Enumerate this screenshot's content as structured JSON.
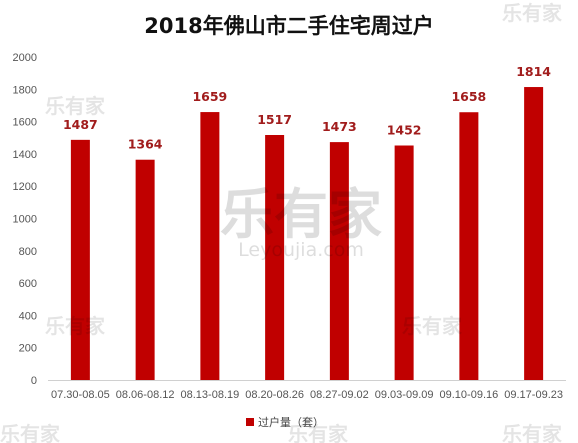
{
  "chart_data": {
    "type": "bar",
    "title": "2018年佛山市二手住宅周过户",
    "categories": [
      "07.30-08.05",
      "08.06-08.12",
      "08.13-08.19",
      "08.20-08.26",
      "08.27-09.02",
      "09.03-09.09",
      "09.10-09.16",
      "09.17-09.23"
    ],
    "series": [
      {
        "name": "过户量（套）",
        "values": [
          1487,
          1364,
          1659,
          1517,
          1473,
          1452,
          1658,
          1814
        ]
      }
    ],
    "xlabel": "",
    "ylabel": "",
    "ylim": [
      0,
      2000
    ],
    "yticks": [
      0,
      200,
      400,
      600,
      800,
      1000,
      1200,
      1400,
      1600,
      1800,
      2000
    ],
    "grid": false,
    "legend_position": "bottom",
    "bar_color": "#c00000",
    "label_color": "#a11c1c"
  },
  "watermark": {
    "logo": "乐有家",
    "sub": "Leyoujia.com",
    "color": "#000000"
  }
}
